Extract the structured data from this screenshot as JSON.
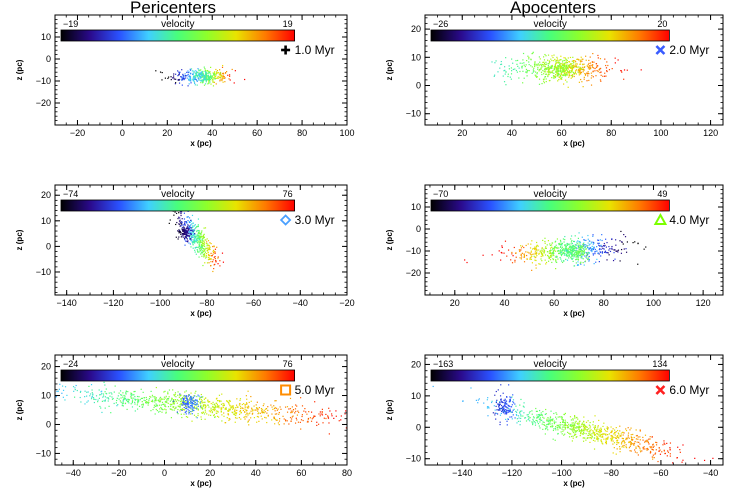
{
  "figure": {
    "column_titles": [
      "Pericenters",
      "Apocenters"
    ]
  },
  "colors": {
    "colormap": [
      "#000000",
      "#2a0a8c",
      "#2a52ff",
      "#3fd0ff",
      "#49ff7a",
      "#8fff2a",
      "#e9e300",
      "#ff7a00",
      "#ff0000"
    ]
  },
  "chart_data": [
    {
      "type": "scatter",
      "column": "Pericenters",
      "xlabel": "x (pc)",
      "ylabel": "z (pc)",
      "xlim": [
        -30,
        100
      ],
      "ylim": [
        -30,
        20
      ],
      "xticks": [
        -20,
        0,
        20,
        40,
        60,
        80,
        100
      ],
      "yticks": [
        -20,
        -10,
        0,
        10
      ],
      "colorbar": {
        "title": "velocity",
        "min": -19,
        "max": 19,
        "min_label": "−19",
        "max_label": "19"
      },
      "time_label": "1.0 Myr",
      "marker": {
        "shape": "plus",
        "color": "#000000"
      },
      "clusters": [
        {
          "cx": 35,
          "cz": -8,
          "sx": 7,
          "sz": 1.8,
          "n": 320,
          "trend": 0.0,
          "vmin": -19,
          "vmax": 19,
          "vx_dir": 1
        },
        {
          "cx": 37,
          "cz": -8,
          "sx": 2.2,
          "sz": 1.2,
          "n": 90,
          "trend": 0.0,
          "vmin": -8,
          "vmax": 3,
          "vx_dir": 1
        }
      ]
    },
    {
      "type": "scatter",
      "column": "Apocenters",
      "xlabel": "x (pc)",
      "ylabel": "z (pc)",
      "xlim": [
        5,
        125
      ],
      "ylim": [
        -14,
        25
      ],
      "xticks": [
        20,
        40,
        60,
        80,
        100,
        120
      ],
      "yticks": [
        -10,
        0,
        10,
        20
      ],
      "colorbar": {
        "title": "velocity",
        "min": -26,
        "max": 20,
        "min_label": "−26",
        "max_label": "20"
      },
      "time_label": "2.0 Myr",
      "marker": {
        "shape": "x-bold",
        "color": "#3a5cff"
      },
      "clusters": [
        {
          "cx": 60,
          "cz": 6,
          "sx": 11,
          "sz": 2.4,
          "n": 520,
          "trend": 0.0,
          "vmin": -6,
          "vmax": 20,
          "vx_dir": 1
        },
        {
          "cx": 60,
          "cz": 6,
          "sx": 3,
          "sz": 1.6,
          "n": 140,
          "trend": 0.0,
          "vmin": 0,
          "vmax": 4,
          "vx_dir": 1
        }
      ]
    },
    {
      "type": "scatter",
      "column": "Pericenters",
      "xlabel": "x (pc)",
      "ylabel": "z (pc)",
      "xlim": [
        -145,
        -20
      ],
      "ylim": [
        -19,
        24
      ],
      "xticks": [
        -140,
        -120,
        -100,
        -80,
        -60,
        -40,
        -20
      ],
      "yticks": [
        -10,
        0,
        10,
        20
      ],
      "colorbar": {
        "title": "velocity",
        "min": -74,
        "max": 76,
        "min_label": "−74",
        "max_label": "76"
      },
      "time_label": "3.0 Myr",
      "marker": {
        "shape": "diamond-open",
        "color": "#4aa0ff"
      },
      "clusters": [
        {
          "cx": -84,
          "cz": 3,
          "sx": 4.5,
          "sz": 2.8,
          "n": 420,
          "trend": -0.9,
          "vmin": -74,
          "vmax": 76,
          "vx_dir": 1
        },
        {
          "cx": -89,
          "cz": 5.5,
          "sx": 1.6,
          "sz": 1.6,
          "n": 110,
          "trend": 0.0,
          "vmin": -70,
          "vmax": -45,
          "vx_dir": 1
        }
      ]
    },
    {
      "type": "scatter",
      "column": "Apocenters",
      "xlabel": "x (pc)",
      "ylabel": "z (pc)",
      "xlim": [
        8,
        128
      ],
      "ylim": [
        -30,
        20
      ],
      "xticks": [
        20,
        40,
        60,
        80,
        100,
        120
      ],
      "yticks": [
        -20,
        -10,
        0,
        10
      ],
      "colorbar": {
        "title": "velocity",
        "min": -70,
        "max": 49,
        "min_label": "−70",
        "max_label": "49"
      },
      "time_label": "4.0 Myr",
      "marker": {
        "shape": "triangle-open",
        "color": "#7cff00"
      },
      "clusters": [
        {
          "cx": 65,
          "cz": -10,
          "sx": 12,
          "sz": 2.6,
          "n": 560,
          "trend": 0.07,
          "vmin": -70,
          "vmax": 49,
          "vx_dir": -1
        },
        {
          "cx": 69,
          "cz": -10.5,
          "sx": 2.6,
          "sz": 2.0,
          "n": 150,
          "trend": 0.0,
          "vmin": -12,
          "vmax": 2,
          "vx_dir": 1
        }
      ]
    },
    {
      "type": "scatter",
      "column": "Pericenters",
      "xlabel": "x (pc)",
      "ylabel": "z (pc)",
      "xlim": [
        -48,
        80
      ],
      "ylim": [
        -14,
        24
      ],
      "xticks": [
        -40,
        -20,
        0,
        20,
        40,
        60,
        80
      ],
      "yticks": [
        -10,
        0,
        10,
        20
      ],
      "colorbar": {
        "title": "velocity",
        "min": -24,
        "max": 76,
        "min_label": "−24",
        "max_label": "76"
      },
      "time_label": "5.0 Myr",
      "marker": {
        "shape": "square-open",
        "color": "#ff8c00"
      },
      "clusters": [
        {
          "cx": 15,
          "cz": 6.5,
          "sx": 30,
          "sz": 2.0,
          "n": 900,
          "trend": -0.075,
          "vmin": 10,
          "vmax": 76,
          "vx_dir": 1
        },
        {
          "cx": 11,
          "cz": 7.5,
          "sx": 2.2,
          "sz": 1.6,
          "n": 120,
          "trend": 0.0,
          "vmin": 0,
          "vmax": 8,
          "vx_dir": 1
        }
      ]
    },
    {
      "type": "scatter",
      "column": "Apocenters",
      "xlabel": "x (pc)",
      "ylabel": "z (pc)",
      "xlim": [
        -155,
        -35
      ],
      "ylim": [
        -12,
        23
      ],
      "xticks": [
        -140,
        -120,
        -100,
        -80,
        -60,
        -40
      ],
      "yticks": [
        -10,
        0,
        10,
        20
      ],
      "colorbar": {
        "title": "velocity",
        "min": -163,
        "max": 134,
        "min_label": "−163",
        "max_label": "134"
      },
      "time_label": "6.0 Myr",
      "marker": {
        "shape": "x-bold",
        "color": "#ff2020"
      },
      "clusters": [
        {
          "cx": -90,
          "cz": -1,
          "sx": 18,
          "sz": 1.8,
          "n": 760,
          "trend": -0.2,
          "vmin": -60,
          "vmax": 134,
          "vx_dir": 1
        },
        {
          "cx": -123,
          "cz": 6.5,
          "sx": 2.0,
          "sz": 2.2,
          "n": 130,
          "trend": 0.0,
          "vmin": -110,
          "vmax": -80,
          "vx_dir": 1
        }
      ]
    }
  ]
}
